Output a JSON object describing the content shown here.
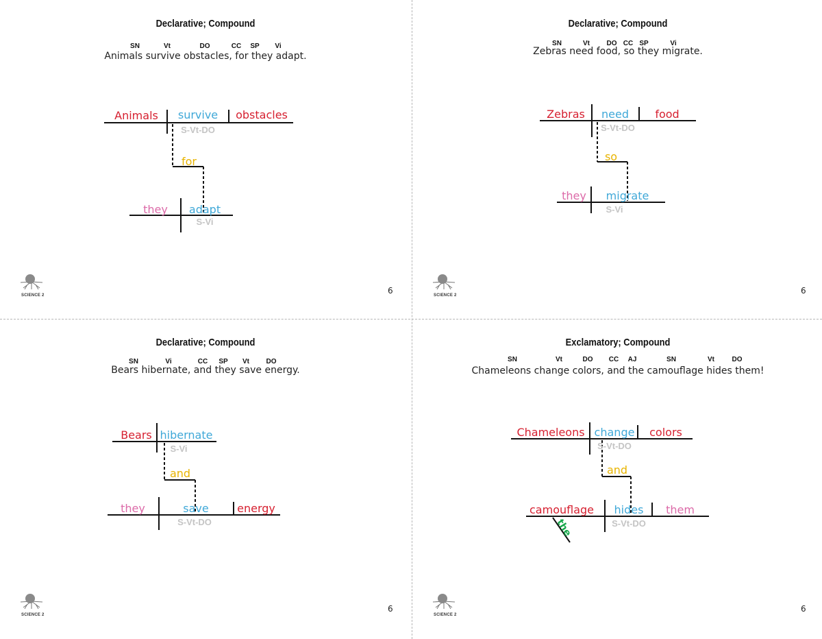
{
  "footer": {
    "logo_text": "SCIENCE 2",
    "logo_icon": "tree-roots-icon"
  },
  "colors": {
    "subject": "#d62030",
    "verb": "#3fa8d8",
    "pronoun": "#dc6aa8",
    "conjunction": "#e8b400",
    "article": "#19a84c",
    "pattern": "#c4c4c4"
  },
  "cards": [
    {
      "title": "Declarative; Compound",
      "tags": [
        "SN",
        "Vt",
        "DO",
        "CC",
        "SP",
        "Vi"
      ],
      "sentence": "Animals survive obstacles, for they adapt.",
      "words": {
        "subject1": "Animals",
        "verb1": "survive",
        "object1": "obstacles",
        "pattern1": "S-Vt-DO",
        "conj": "for",
        "subject2": "they",
        "verb2": "adapt",
        "pattern2": "S-Vi"
      },
      "page_number": "6"
    },
    {
      "title": "Declarative; Compound",
      "tags": [
        "SN",
        "Vt",
        "DO",
        "CC",
        "SP",
        "Vi"
      ],
      "sentence": "Zebras need food, so they migrate.",
      "words": {
        "subject1": "Zebras",
        "verb1": "need",
        "object1": "food",
        "pattern1": "S-Vt-DO",
        "conj": "so",
        "subject2": "they",
        "verb2": "migrate",
        "pattern2": "S-Vi"
      },
      "page_number": "6"
    },
    {
      "title": "Declarative; Compound",
      "tags": [
        "SN",
        "Vi",
        "CC",
        "SP",
        "Vt",
        "DO"
      ],
      "sentence": "Bears hibernate, and they save energy.",
      "words": {
        "subject1": "Bears",
        "verb1": "hibernate",
        "pattern1": "S-Vi",
        "conj": "and",
        "subject2": "they",
        "verb2": "save",
        "object2": "energy",
        "pattern2": "S-Vt-DO"
      },
      "page_number": "6"
    },
    {
      "title": "Exclamatory; Compound",
      "tags": [
        "SN",
        "Vt",
        "DO",
        "CC",
        "AJ",
        "SN",
        "Vt",
        "DO"
      ],
      "sentence": "Chameleons change colors, and the camouflage hides them!",
      "words": {
        "subject1": "Chameleons",
        "verb1": "change",
        "object1": "colors",
        "pattern1": "S-Vt-DO",
        "conj": "and",
        "subject2": "camouflage",
        "article": "the",
        "verb2": "hides",
        "object2": "them",
        "pattern2": "S-Vt-DO"
      },
      "page_number": "6"
    }
  ]
}
